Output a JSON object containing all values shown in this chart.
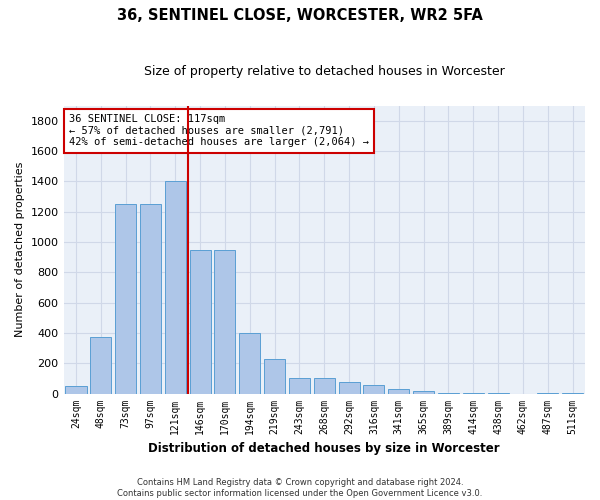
{
  "title1": "36, SENTINEL CLOSE, WORCESTER, WR2 5FA",
  "title2": "Size of property relative to detached houses in Worcester",
  "xlabel": "Distribution of detached houses by size in Worcester",
  "ylabel": "Number of detached properties",
  "footer": "Contains HM Land Registry data © Crown copyright and database right 2024.\nContains public sector information licensed under the Open Government Licence v3.0.",
  "bar_labels": [
    "24sqm",
    "48sqm",
    "73sqm",
    "97sqm",
    "121sqm",
    "146sqm",
    "170sqm",
    "194sqm",
    "219sqm",
    "243sqm",
    "268sqm",
    "292sqm",
    "316sqm",
    "341sqm",
    "365sqm",
    "389sqm",
    "414sqm",
    "438sqm",
    "462sqm",
    "487sqm",
    "511sqm"
  ],
  "bar_values": [
    50,
    375,
    1250,
    1250,
    1400,
    950,
    950,
    400,
    230,
    105,
    105,
    75,
    55,
    30,
    20,
    5,
    5,
    5,
    0,
    5,
    5
  ],
  "bar_color": "#aec6e8",
  "bar_edge_color": "#5a9fd4",
  "grid_color": "#d0d8e8",
  "bg_color": "#eaf0f8",
  "vline_x_index": 4,
  "vline_color": "#cc0000",
  "annotation_text": "36 SENTINEL CLOSE: 117sqm\n← 57% of detached houses are smaller (2,791)\n42% of semi-detached houses are larger (2,064) →",
  "annotation_box_color": "#cc0000",
  "ylim": [
    0,
    1900
  ],
  "yticks": [
    0,
    200,
    400,
    600,
    800,
    1000,
    1200,
    1400,
    1600,
    1800
  ]
}
